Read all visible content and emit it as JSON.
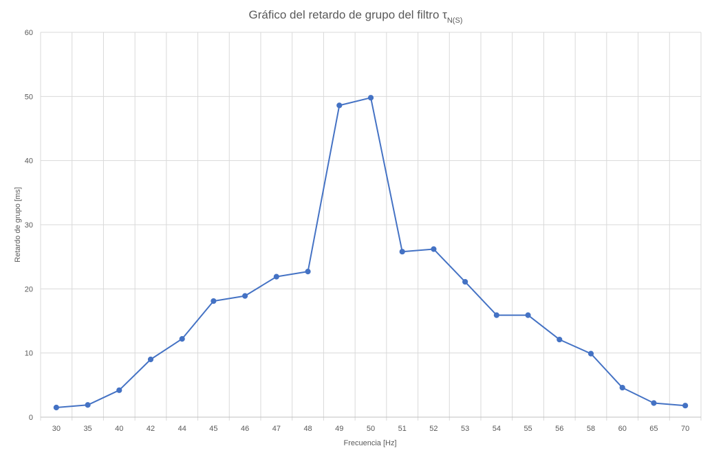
{
  "chart_data": {
    "type": "line",
    "title_main": "Gráfico del retardo de grupo del filtro τ",
    "title_subscript": "N(S)",
    "xlabel": "Frecuencia [Hz]",
    "ylabel": "Retardo de grupo [ms]",
    "categories": [
      "30",
      "35",
      "40",
      "42",
      "44",
      "45",
      "46",
      "47",
      "48",
      "49",
      "50",
      "51",
      "52",
      "53",
      "54",
      "55",
      "56",
      "58",
      "60",
      "65",
      "70"
    ],
    "series": [
      {
        "values": [
          1.5,
          1.9,
          4.2,
          9.0,
          12.2,
          18.1,
          18.9,
          21.9,
          22.7,
          48.6,
          49.8,
          25.8,
          26.2,
          21.1,
          15.9,
          15.9,
          12.1,
          9.9,
          4.6,
          2.2,
          1.8
        ],
        "color": "#4472c4"
      }
    ],
    "ylim": [
      0,
      60
    ],
    "yticks": [
      0,
      10,
      20,
      30,
      40,
      50,
      60
    ],
    "grid": true,
    "legend": "none"
  }
}
